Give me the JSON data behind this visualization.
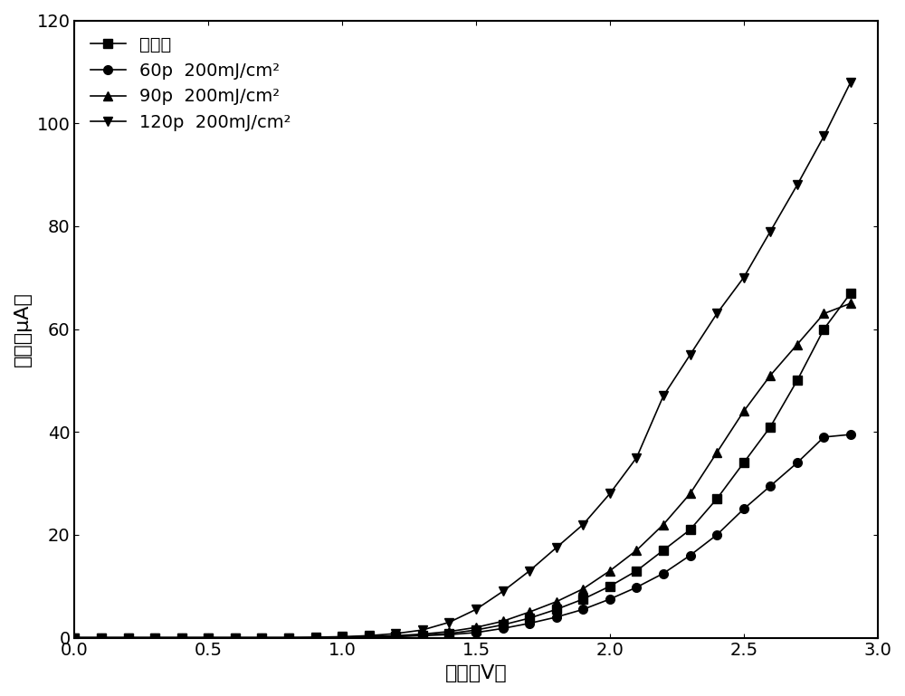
{
  "title": "",
  "xlabel": "电压（V）",
  "ylabel": "电流（μA）",
  "xlim": [
    0.0,
    3.0
  ],
  "ylim": [
    0,
    120
  ],
  "xticks": [
    0.0,
    0.5,
    1.0,
    1.5,
    2.0,
    2.5,
    3.0
  ],
  "yticks": [
    0,
    20,
    40,
    60,
    80,
    100,
    120
  ],
  "series": [
    {
      "label": "未辐照",
      "marker": "s",
      "color": "#000000",
      "x": [
        0.0,
        0.1,
        0.2,
        0.3,
        0.4,
        0.5,
        0.6,
        0.7,
        0.8,
        0.9,
        1.0,
        1.1,
        1.2,
        1.3,
        1.4,
        1.5,
        1.6,
        1.7,
        1.8,
        1.9,
        2.0,
        2.1,
        2.2,
        2.3,
        2.4,
        2.5,
        2.6,
        2.7,
        2.8,
        2.9
      ],
      "y": [
        0.0,
        0.0,
        0.0,
        0.0,
        0.0,
        0.0,
        0.0,
        0.0,
        0.0,
        0.0,
        0.1,
        0.2,
        0.3,
        0.5,
        0.8,
        1.5,
        2.5,
        3.8,
        5.5,
        7.5,
        10.0,
        13.0,
        17.0,
        21.0,
        27.0,
        34.0,
        41.0,
        50.0,
        60.0,
        67.0
      ]
    },
    {
      "label": "60p  200mJ/cm²",
      "marker": "o",
      "color": "#000000",
      "x": [
        0.0,
        0.1,
        0.2,
        0.3,
        0.4,
        0.5,
        0.6,
        0.7,
        0.8,
        0.9,
        1.0,
        1.1,
        1.2,
        1.3,
        1.4,
        1.5,
        1.6,
        1.7,
        1.8,
        1.9,
        2.0,
        2.1,
        2.2,
        2.3,
        2.4,
        2.5,
        2.6,
        2.7,
        2.8,
        2.9
      ],
      "y": [
        0.0,
        0.0,
        0.0,
        0.0,
        0.0,
        0.0,
        0.0,
        0.0,
        0.0,
        0.0,
        0.0,
        0.1,
        0.2,
        0.4,
        0.6,
        1.0,
        1.8,
        2.8,
        4.0,
        5.5,
        7.5,
        9.8,
        12.5,
        16.0,
        20.0,
        25.0,
        29.5,
        34.0,
        39.0,
        39.5
      ]
    },
    {
      "label": "90p  200mJ/cm²",
      "marker": "^",
      "color": "#000000",
      "x": [
        0.0,
        0.1,
        0.2,
        0.3,
        0.4,
        0.5,
        0.6,
        0.7,
        0.8,
        0.9,
        1.0,
        1.1,
        1.2,
        1.3,
        1.4,
        1.5,
        1.6,
        1.7,
        1.8,
        1.9,
        2.0,
        2.1,
        2.2,
        2.3,
        2.4,
        2.5,
        2.6,
        2.7,
        2.8,
        2.9
      ],
      "y": [
        0.0,
        0.0,
        0.0,
        0.0,
        0.0,
        0.0,
        0.0,
        0.0,
        0.0,
        0.0,
        0.1,
        0.2,
        0.4,
        0.7,
        1.2,
        2.0,
        3.2,
        5.0,
        7.0,
        9.5,
        13.0,
        17.0,
        22.0,
        28.0,
        36.0,
        44.0,
        51.0,
        57.0,
        63.0,
        65.0
      ]
    },
    {
      "label": "120p  200mJ/cm²",
      "marker": "v",
      "color": "#000000",
      "x": [
        0.0,
        0.1,
        0.2,
        0.3,
        0.4,
        0.5,
        0.6,
        0.7,
        0.8,
        0.9,
        1.0,
        1.1,
        1.2,
        1.3,
        1.4,
        1.5,
        1.6,
        1.7,
        1.8,
        1.9,
        2.0,
        2.1,
        2.2,
        2.3,
        2.4,
        2.5,
        2.6,
        2.7,
        2.8,
        2.9
      ],
      "y": [
        0.0,
        0.0,
        0.0,
        0.0,
        0.0,
        0.0,
        0.0,
        0.0,
        0.0,
        0.1,
        0.2,
        0.4,
        0.8,
        1.5,
        3.0,
        5.5,
        9.0,
        13.0,
        17.5,
        22.0,
        28.0,
        35.0,
        47.0,
        55.0,
        63.0,
        70.0,
        79.0,
        88.0,
        97.5,
        108.0
      ]
    }
  ],
  "background_color": "#ffffff",
  "line_color": "#000000",
  "marker_size": 7,
  "linewidth": 1.2,
  "legend_fontsize": 14,
  "axis_fontsize": 16,
  "tick_fontsize": 14
}
